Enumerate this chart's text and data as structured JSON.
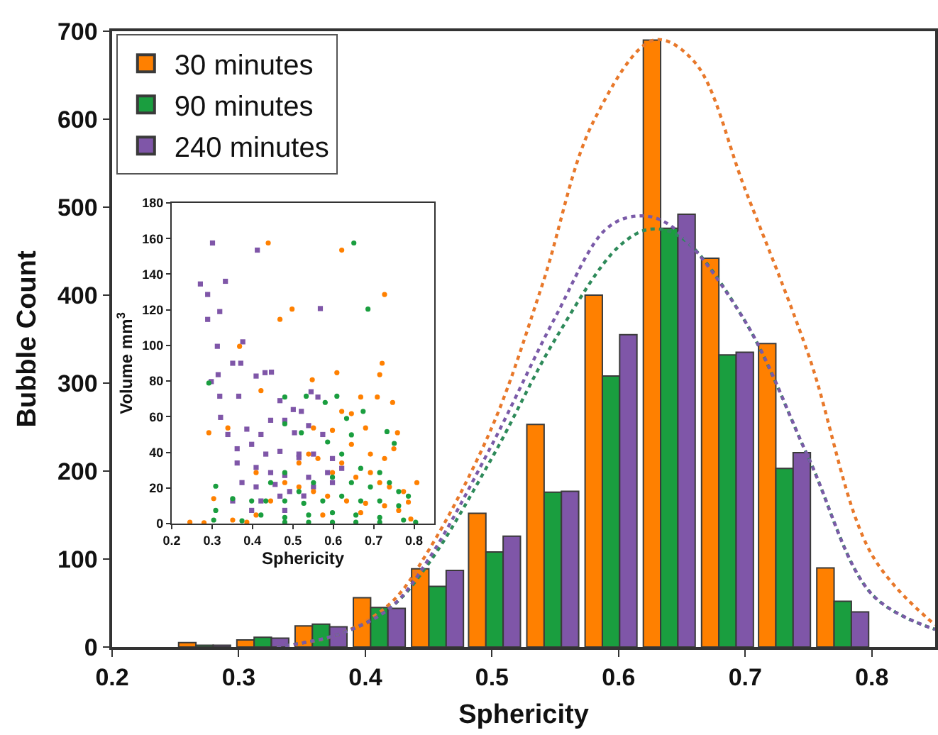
{
  "chart_data": [
    {
      "type": "bar",
      "xlabel": "Sphericity",
      "ylabel": "Bubble Count",
      "x": [
        0.273,
        0.319,
        0.365,
        0.411,
        0.457,
        0.502,
        0.548,
        0.594,
        0.64,
        0.686,
        0.731,
        0.777
      ],
      "xlim": [
        0.2,
        0.85
      ],
      "xticks": [
        0.2,
        0.3,
        0.4,
        0.5,
        0.6,
        0.7,
        0.8
      ],
      "ylim": [
        0,
        700
      ],
      "yticks": [
        0,
        100,
        200,
        300,
        400,
        500,
        600,
        700
      ],
      "legend": "top left",
      "series": [
        {
          "name": "30 minutes",
          "color": "#ff8000",
          "values": [
            5,
            8,
            24,
            56,
            89,
            152,
            253,
            400,
            690,
            442,
            345,
            90
          ]
        },
        {
          "name": "90 minutes",
          "color": "#1a9e3f",
          "values": [
            2,
            11,
            26,
            45,
            69,
            108,
            176,
            308,
            476,
            332,
            203,
            52
          ]
        },
        {
          "name": "240 minutes",
          "color": "#7f56a8",
          "values": [
            2,
            10,
            23,
            44,
            87,
            126,
            177,
            355,
            492,
            335,
            221,
            40
          ]
        },
        {
          "type": "line",
          "line_style": "dotted",
          "marker": "none",
          "color": "#e8782a",
          "x": [
            0.33,
            0.38,
            0.42,
            0.45,
            0.5,
            0.54,
            0.58,
            0.628,
            0.66,
            0.7,
            0.75,
            0.8,
            0.85
          ],
          "values": [
            0,
            15,
            50,
            110,
            250,
            413,
            597,
            690,
            665,
            520,
            332,
            105,
            25
          ]
        },
        {
          "type": "line",
          "line_style": "dotted",
          "marker": "none",
          "color": "#2e8a5a",
          "x": [
            0.33,
            0.38,
            0.42,
            0.45,
            0.5,
            0.55,
            0.6,
            0.625,
            0.65,
            0.7,
            0.75,
            0.8,
            0.85
          ],
          "values": [
            0,
            15,
            45,
            95,
            215,
            350,
            455,
            475,
            465,
            370,
            215,
            60,
            20
          ]
        },
        {
          "type": "line",
          "line_style": "dotted",
          "marker": "none",
          "color": "#7a5aa8",
          "x": [
            0.33,
            0.38,
            0.42,
            0.45,
            0.5,
            0.55,
            0.59,
            0.615,
            0.64,
            0.7,
            0.75,
            0.8,
            0.85
          ],
          "values": [
            0,
            15,
            45,
            100,
            230,
            375,
            475,
            490,
            480,
            370,
            215,
            60,
            20
          ]
        }
      ]
    },
    {
      "type": "scatter",
      "xlabel": "Sphericity",
      "ylabel": "Volume mm$^{3}$",
      "xlim": [
        0.2,
        0.85
      ],
      "xticks": [
        0.2,
        0.3,
        0.4,
        0.5,
        0.6,
        0.7,
        0.8
      ],
      "ylim": [
        0,
        180
      ],
      "yticks": [
        0,
        20,
        40,
        60,
        80,
        100,
        120,
        140,
        160,
        180
      ],
      "legend": false,
      "series": [
        {
          "color": "#7f56a8",
          "marker": "square",
          "x": [
            0.301,
            0.271,
            0.289,
            0.289,
            0.319,
            0.333,
            0.412,
            0.568,
            0.313,
            0.376,
            0.351,
            0.371,
            0.298,
            0.315,
            0.409,
            0.431,
            0.447,
            0.319,
            0.366,
            0.468,
            0.501,
            0.521,
            0.545,
            0.562,
            0.321,
            0.339,
            0.386,
            0.421,
            0.445,
            0.48,
            0.504,
            0.539,
            0.574,
            0.362,
            0.398,
            0.433,
            0.468,
            0.515,
            0.551,
            0.598,
            0.362,
            0.409,
            0.445,
            0.48,
            0.515,
            0.539,
            0.586,
            0.621,
            0.374,
            0.409,
            0.456,
            0.492,
            0.551,
            0.598,
            0.421,
            0.468,
            0.527,
            0.351,
            0.398,
            0.48
          ],
          "values": [
            157.5,
            134.5,
            128.6,
            114.6,
            119,
            136,
            153.5,
            120.7,
            99.5,
            102,
            90,
            90,
            79.7,
            83.6,
            82.8,
            84.7,
            85,
            71.5,
            71.5,
            69,
            64,
            63,
            74,
            71,
            59.6,
            50,
            53,
            50,
            58,
            58,
            51,
            55,
            50,
            42,
            44.5,
            39,
            40.5,
            39,
            39,
            36.5,
            34,
            31.5,
            28.6,
            27,
            37,
            26,
            28.6,
            31,
            23,
            20.6,
            22,
            18,
            20.6,
            23,
            12.7,
            15.4,
            15.5,
            12.7,
            7.4,
            7.4
          ]
        },
        {
          "color": "#ff8000",
          "marker": "circle",
          "x": [
            0.439,
            0.621,
            0.498,
            0.468,
            0.727,
            0.368,
            0.721,
            0.715,
            0.609,
            0.421,
            0.548,
            0.747,
            0.292,
            0.339,
            0.668,
            0.709,
            0.621,
            0.645,
            0.598,
            0.551,
            0.68,
            0.759,
            0.645,
            0.692,
            0.727,
            0.75,
            0.304,
            0.409,
            0.515,
            0.539,
            0.562,
            0.598,
            0.621,
            0.656,
            0.692,
            0.715,
            0.739,
            0.774,
            0.786,
            0.807,
            0.48,
            0.515,
            0.551,
            0.586,
            0.633,
            0.68,
            0.727,
            0.762,
            0.445,
            0.409,
            0.245,
            0.28,
            0.351,
            0.386,
            0.792,
            0.574,
            0.668
          ],
          "values": [
            157.5,
            153.5,
            120.4,
            114.6,
            128.6,
            99.5,
            90,
            83.6,
            84.7,
            74.6,
            80.7,
            68,
            51,
            53.7,
            71,
            71,
            63,
            61.7,
            52.4,
            53.7,
            53.7,
            51,
            44.5,
            39,
            36.5,
            42,
            14,
            28.6,
            34,
            39,
            36.5,
            28.6,
            34,
            26,
            28.6,
            23,
            20.6,
            18,
            12,
            23,
            23,
            20.6,
            18,
            15.4,
            12.7,
            11.4,
            10,
            7.4,
            12.7,
            4.8,
            0.8,
            0.5,
            2,
            0.8,
            2.6,
            4.8,
            6.1
          ]
        },
        {
          "color": "#1a9e3f",
          "marker": "circle",
          "x": [
            0.651,
            0.686,
            0.292,
            0.309,
            0.351,
            0.309,
            0.48,
            0.533,
            0.58,
            0.609,
            0.674,
            0.633,
            0.733,
            0.751,
            0.645,
            0.586,
            0.48,
            0.521,
            0.445,
            0.48,
            0.621,
            0.668,
            0.715,
            0.739,
            0.762,
            0.786,
            0.515,
            0.551,
            0.598,
            0.645,
            0.692,
            0.398,
            0.433,
            0.48,
            0.527,
            0.574,
            0.621,
            0.668,
            0.715,
            0.762,
            0.421,
            0.48,
            0.539,
            0.598,
            0.656,
            0.715,
            0.774,
            0.804,
            0.48,
            0.598,
            0.656,
            0.304,
            0.374,
            0.715,
            0.539
          ],
          "values": [
            157.5,
            120.4,
            78.9,
            21,
            14,
            7.4,
            71,
            71.5,
            68,
            71.5,
            63,
            59,
            51.6,
            45,
            49.8,
            45.8,
            56,
            51,
            23,
            28.6,
            39,
            31,
            28.6,
            23,
            18,
            15.4,
            18,
            23,
            26,
            23,
            20.6,
            12.7,
            12.7,
            12.7,
            11.4,
            12.7,
            15.4,
            12.7,
            12.7,
            10,
            4.8,
            3.4,
            4.8,
            6.1,
            4.8,
            3.4,
            2,
            0.8,
            0.8,
            0.8,
            0.8,
            2,
            1.6,
            0.8,
            0.8
          ]
        }
      ]
    }
  ]
}
